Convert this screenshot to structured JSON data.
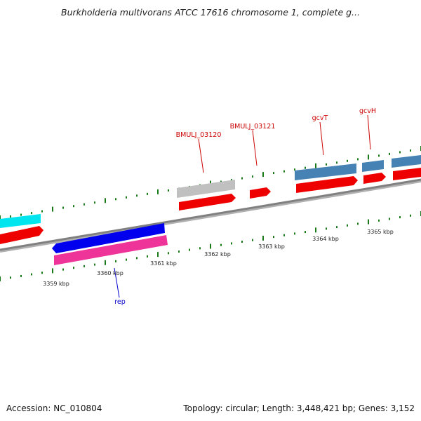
{
  "title": "Burkholderia multivorans ATCC 17616 chromosome 1, complete g...",
  "footer": {
    "accession": "Accession: NC_010804",
    "topology": "Topology: circular; Length: 3,448,421 bp; Genes: 3,152"
  },
  "colors": {
    "backbone": "#808080",
    "tick_major": "#1a7a1a",
    "label_red": "#cc0000",
    "label_blue": "#0000cc"
  },
  "ticks": [
    {
      "label": "3359 kbp"
    },
    {
      "label": "3360 kbp"
    },
    {
      "label": "3361 kbp"
    },
    {
      "label": "3362 kbp"
    },
    {
      "label": "3363 kbp"
    },
    {
      "label": "3364 kbp"
    },
    {
      "label": "3365 kbp"
    }
  ],
  "gene_labels": [
    {
      "name": "BMULJ_03120",
      "color": "#cc0000"
    },
    {
      "name": "BMULJ_03121",
      "color": "#cc0000"
    },
    {
      "name": "gcvT",
      "color": "#cc0000"
    },
    {
      "name": "gcvH",
      "color": "#cc0000"
    },
    {
      "name": "rep",
      "color": "#0000cc"
    }
  ]
}
